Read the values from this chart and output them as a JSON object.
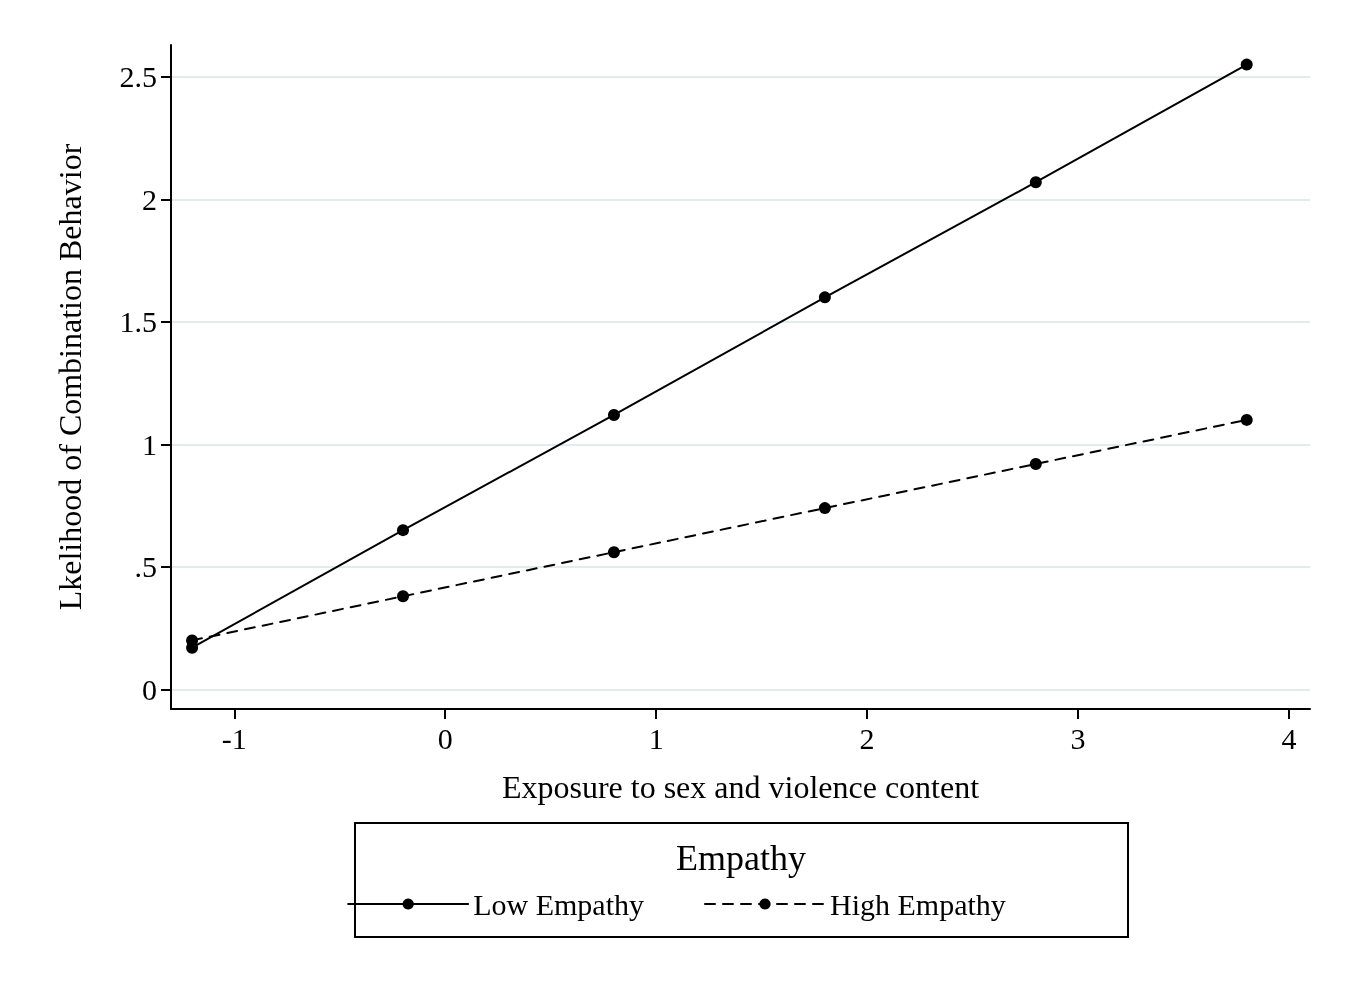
{
  "chart_data": {
    "type": "line",
    "xlabel": "Exposure to sex and violence content",
    "ylabel": "Lkelihood of Combination Behavior",
    "legend_title": "Empathy",
    "x": [
      -1.2,
      -0.2,
      0.8,
      1.8,
      2.8,
      3.8
    ],
    "series": [
      {
        "name": "Low Empathy",
        "color": "#000000",
        "line_style": "solid",
        "values": [
          0.17,
          0.65,
          1.12,
          1.6,
          2.07,
          2.55
        ]
      },
      {
        "name": "High Empathy",
        "color": "#000000",
        "line_style": "dashed",
        "values": [
          0.2,
          0.38,
          0.56,
          0.74,
          0.92,
          1.1
        ]
      }
    ],
    "xlim": [
      -1.3,
      4.1
    ],
    "xticks": [
      -1,
      0,
      1,
      2,
      3,
      4
    ],
    "ylim": [
      -0.08,
      2.63
    ],
    "yticks": [
      0,
      {
        "value": 0.5,
        "label": ".5"
      },
      1,
      1.5,
      2,
      2.5
    ],
    "grid": "y",
    "legend": "bottom",
    "marker": "circle"
  }
}
